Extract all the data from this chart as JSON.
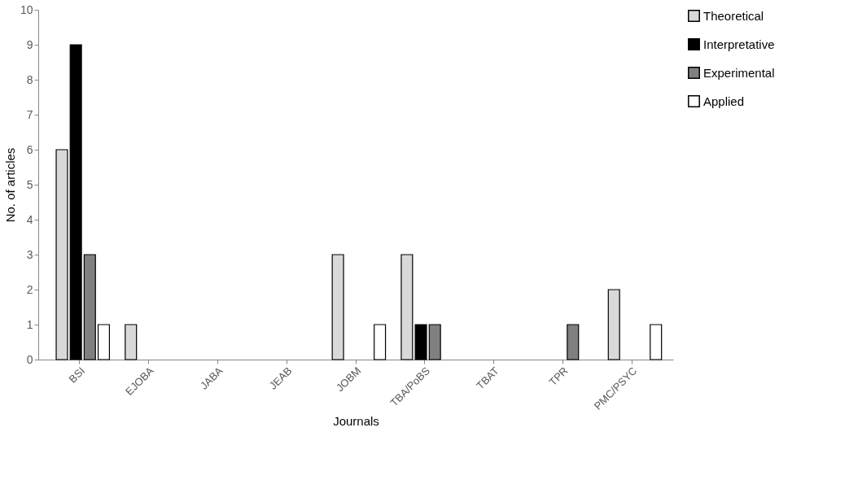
{
  "chart_data": {
    "type": "bar",
    "xlabel": "Journals",
    "ylabel": "No. of articles",
    "categories": [
      "BSI",
      "EJOBA",
      "JABA",
      "JEAB",
      "JOBM",
      "TBA/PoBS",
      "TBAT",
      "TPR",
      "PMC/PSYC"
    ],
    "series": [
      {
        "name": "Theoretical",
        "color": "#d9d9d9",
        "values": [
          6,
          1,
          0,
          0,
          3,
          3,
          0,
          0,
          2
        ]
      },
      {
        "name": "Interpretative",
        "color": "#000000",
        "values": [
          9,
          0,
          0,
          0,
          0,
          1,
          0,
          0,
          0
        ]
      },
      {
        "name": "Experimental",
        "color": "#808080",
        "values": [
          3,
          0,
          0,
          0,
          0,
          1,
          0,
          1,
          0
        ]
      },
      {
        "name": "Applied",
        "color": "#ffffff",
        "values": [
          1,
          0,
          0,
          0,
          1,
          0,
          0,
          0,
          1
        ]
      }
    ],
    "ylim": [
      0,
      10
    ],
    "yticks": [
      0,
      1,
      2,
      3,
      4,
      5,
      6,
      7,
      8,
      9,
      10
    ],
    "grid": false,
    "legend": "right"
  }
}
